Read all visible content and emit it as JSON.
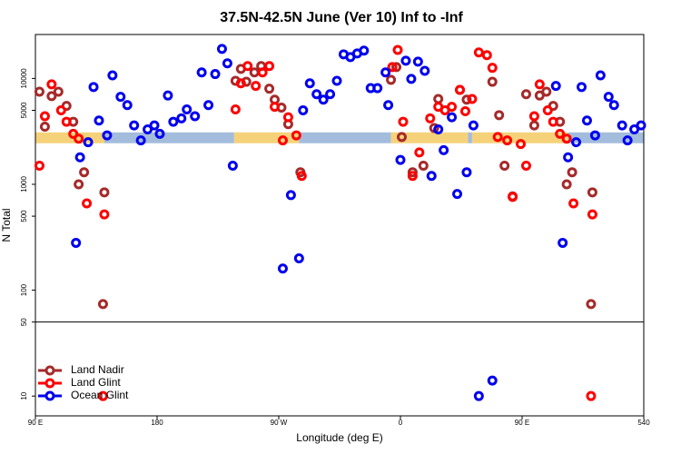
{
  "chart_data": {
    "type": "scatter",
    "title": "37.5N-42.5N June (Ver 10)   Inf to -Inf",
    "x_label": "Longitude (deg E)",
    "y_label": "N Total",
    "xlim": [
      90,
      540
    ],
    "xticks": [
      {
        "value": 90,
        "label": "90 E"
      },
      180,
      {
        "value": 270,
        "label": "90 W"
      },
      {
        "value": 360,
        "label": "0"
      },
      {
        "value": 450,
        "label": "90 E"
      },
      540
    ],
    "ylim": [
      6.5,
      26000
    ],
    "yticks": [
      10,
      50,
      100,
      500,
      1000,
      5000,
      10000
    ],
    "log_y": true,
    "panel_split": 50,
    "legend": "bottom-left",
    "band_y": 2750,
    "bands": [
      {
        "from": 90,
        "to": 141,
        "color": "#f5d27a"
      },
      {
        "from": 141,
        "to": 237,
        "color": "#a4bcdc"
      },
      {
        "from": 237,
        "to": 285,
        "color": "#f5d27a"
      },
      {
        "from": 285,
        "to": 353,
        "color": "#a4bcdc"
      },
      {
        "from": 353,
        "to": 410,
        "color": "#f5d27a"
      },
      {
        "from": 410,
        "to": 413,
        "color": "#a4bcdc"
      },
      {
        "from": 413,
        "to": 484,
        "color": "#f5d27a"
      },
      {
        "from": 484,
        "to": 540,
        "color": "#a4bcdc"
      }
    ],
    "series": [
      {
        "name": "Land Nadir",
        "color": "#a52a2a",
        "x": [
          93,
          97,
          102,
          107,
          113,
          118,
          122,
          126,
          141,
          140,
          238,
          242,
          246,
          252,
          257,
          263,
          267,
          272,
          277,
          286,
          353,
          357,
          361,
          369,
          377,
          385,
          388,
          404,
          409,
          428,
          433,
          437,
          443,
          453,
          459,
          463,
          468,
          473,
          478,
          483,
          487,
          502,
          501
        ],
        "values": [
          7500,
          3500,
          6800,
          7500,
          5500,
          3900,
          1000,
          1300,
          840,
          74,
          9500,
          12300,
          9300,
          11400,
          13100,
          8000,
          6300,
          5300,
          3700,
          1300,
          9700,
          12800,
          2800,
          1300,
          1500,
          3400,
          6400,
          7800,
          6300,
          9300,
          4500,
          1500,
          770,
          7100,
          3600,
          6900,
          7500,
          5500,
          3900,
          1000,
          1300,
          840,
          74
        ]
      },
      {
        "name": "Land Glint",
        "color": "#ff0000",
        "x": [
          93,
          97,
          102,
          109,
          113,
          118,
          122,
          128,
          141,
          140,
          238,
          242,
          247,
          253,
          258,
          263,
          267,
          273,
          277,
          283,
          287,
          354,
          358,
          362,
          369,
          374,
          382,
          388,
          393,
          398,
          404,
          408,
          413,
          418,
          424,
          428,
          432,
          439,
          443,
          449,
          453,
          459,
          463,
          469,
          473,
          478,
          483,
          488,
          502,
          501
        ],
        "values": [
          1500,
          4400,
          8800,
          5000,
          3900,
          3000,
          2700,
          660,
          520,
          10,
          5100,
          9000,
          13100,
          8500,
          11400,
          13100,
          5400,
          2600,
          4300,
          2900,
          1200,
          12800,
          18600,
          3900,
          1200,
          2000,
          4200,
          5400,
          5000,
          5400,
          7800,
          4900,
          6400,
          17600,
          16600,
          12600,
          2800,
          2600,
          760,
          2400,
          1500,
          4400,
          8800,
          5000,
          3900,
          3000,
          2700,
          660,
          520,
          10
        ]
      },
      {
        "name": "Ocean Glint",
        "color": "#0000ee",
        "x": [
          120,
          123,
          129,
          133,
          137,
          143,
          147,
          153,
          158,
          163,
          168,
          173,
          178,
          182,
          188,
          192,
          198,
          202,
          208,
          213,
          218,
          223,
          228,
          232,
          236,
          273,
          279,
          285,
          288,
          293,
          298,
          303,
          308,
          313,
          318,
          323,
          328,
          333,
          338,
          343,
          349,
          351,
          360,
          364,
          368,
          373,
          378,
          383,
          388,
          392,
          398,
          402,
          409,
          414,
          418,
          428,
          475,
          480,
          484,
          490,
          494,
          498,
          504,
          508,
          514,
          518,
          524,
          528,
          533,
          538
        ],
        "values": [
          280,
          1800,
          2500,
          8300,
          4000,
          2900,
          10700,
          6700,
          5600,
          3600,
          2600,
          3300,
          3600,
          3000,
          6900,
          3900,
          4200,
          5100,
          4400,
          11400,
          5600,
          11000,
          19000,
          13900,
          1500,
          160,
          790,
          200,
          5000,
          9000,
          7100,
          6300,
          7100,
          9500,
          16900,
          15900,
          17200,
          18300,
          8100,
          8100,
          11400,
          5600,
          1700,
          14700,
          9900,
          14400,
          11800,
          1200,
          3300,
          2100,
          4300,
          810,
          1300,
          3600,
          10,
          14,
          8500,
          280,
          1800,
          2500,
          8300,
          4000,
          2900,
          10700,
          6700,
          5600,
          3600,
          2600,
          3300,
          3600
        ]
      }
    ]
  }
}
